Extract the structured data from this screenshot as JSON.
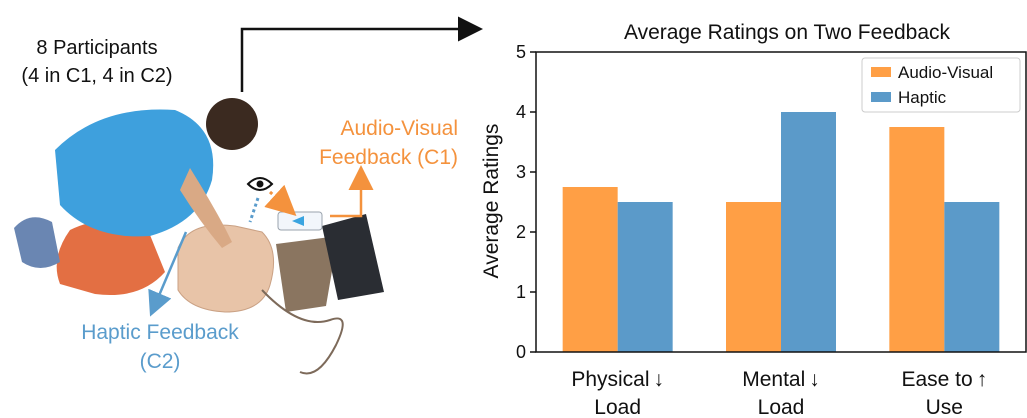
{
  "figure": {
    "participants_line1": "8 Participants",
    "participants_line2": "(4 in C1, 4 in C2)",
    "av_feedback_line1": "Audio-Visual",
    "av_feedback_line2": "Feedback (C1)",
    "haptic_feedback_line1": "Haptic Feedback",
    "haptic_feedback_line2": "(C2)"
  },
  "colors": {
    "audio_visual": "#ff9f45",
    "haptic": "#5b9ac9",
    "av_text": "#f4923d",
    "haptic_text": "#5a9ccc"
  },
  "chart_data": {
    "type": "bar",
    "title": "Average Ratings on Two Feedback",
    "ylabel": "Average Ratings",
    "xlabel": "",
    "ylim": [
      0,
      5
    ],
    "yticks": [
      "0",
      "1",
      "2",
      "3",
      "4",
      "5"
    ],
    "categories": [
      {
        "line1": "Physical",
        "arrow": "↓",
        "line2": "Load"
      },
      {
        "line1": "Mental",
        "arrow": "↓",
        "line2": "Load"
      },
      {
        "line1": "Ease to",
        "arrow": "↑",
        "line2": "Use"
      }
    ],
    "series": [
      {
        "name": "Audio-Visual",
        "values": [
          2.75,
          2.5,
          3.75
        ]
      },
      {
        "name": "Haptic",
        "values": [
          2.5,
          4.0,
          2.5
        ]
      }
    ],
    "legend_position": "top-right",
    "grid": false
  }
}
